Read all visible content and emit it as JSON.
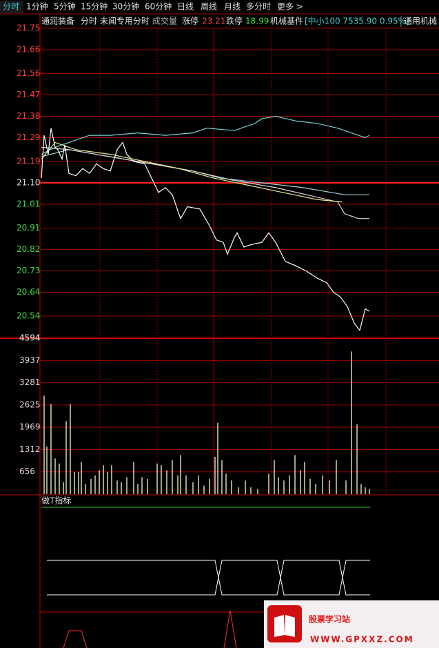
{
  "toolbar": {
    "tabs": [
      "分时",
      "1分钟",
      "5分钟",
      "15分钟",
      "30分钟",
      "60分钟",
      "日线",
      "周线",
      "月线",
      "多分时",
      "更多 >"
    ]
  },
  "header": {
    "stock": "通润装备",
    "view": "分时 未闻专用分时",
    "volume_label": "成交量",
    "limit_up_label": "涨停",
    "limit_up": "23.21",
    "limit_down_label": "跌停",
    "limit_down": "18.99",
    "sector": "机械基件",
    "index": "[中小100 7535.90 0.95%]",
    "industry": "通用机械"
  },
  "chart_data": [
    {
      "type": "line",
      "xlim": [
        0,
        240
      ],
      "ylim": [
        20.45,
        21.75
      ],
      "yticks": [
        21.75,
        21.66,
        21.56,
        21.47,
        21.38,
        21.29,
        21.19,
        {
          "value": 21.1,
          "label": "21.10"
        },
        21.01,
        20.91,
        20.82,
        20.73,
        20.64,
        20.54
      ],
      "ytick_colors": [
        "#ff3c3c",
        "#ff3c3c",
        "#ff3c3c",
        "#ff3c3c",
        "#ff3c3c",
        "#ff3c3c",
        "#ff3c3c",
        "#e0e0e0",
        "#3cdc3c",
        "#3cdc3c",
        "#3cdc3c",
        "#3cdc3c",
        "#3cdc3c",
        "#3cdc3c"
      ],
      "series": [
        {
          "color": "#6fd6d6",
          "x": [
            0,
            10,
            20,
            35,
            50,
            70,
            90,
            110,
            120,
            140,
            155,
            160,
            170,
            185,
            200,
            215,
            225,
            235,
            238
          ],
          "values": [
            21.22,
            21.25,
            21.27,
            21.3,
            21.3,
            21.31,
            21.3,
            21.31,
            21.33,
            21.32,
            21.35,
            21.37,
            21.38,
            21.36,
            21.35,
            21.33,
            21.31,
            21.29,
            21.3
          ]
        },
        {
          "color": "#9fd0d8",
          "x": [
            0,
            20,
            50,
            80,
            110,
            130,
            160,
            190,
            220,
            238
          ],
          "values": [
            21.21,
            21.24,
            21.21,
            21.18,
            21.15,
            21.12,
            21.1,
            21.08,
            21.05,
            21.05
          ]
        },
        {
          "color": "#d8d8d8",
          "x": [
            0,
            20,
            50,
            80,
            110,
            140,
            170,
            200,
            215,
            220,
            230,
            238
          ],
          "values": [
            21.25,
            21.24,
            21.21,
            21.18,
            21.15,
            21.11,
            21.08,
            21.04,
            21.02,
            20.97,
            20.95,
            20.95
          ]
        },
        {
          "color": "#f0e68c",
          "x": [
            0,
            10,
            25,
            50,
            75,
            100,
            125,
            150,
            175,
            200,
            218
          ],
          "values": [
            21.2,
            21.27,
            21.24,
            21.22,
            21.19,
            21.16,
            21.12,
            21.09,
            21.06,
            21.03,
            21.02
          ]
        },
        {
          "color": "#ffffff",
          "x": [
            0,
            2,
            5,
            7,
            10,
            12,
            15,
            17,
            20,
            25,
            30,
            35,
            40,
            45,
            50,
            55,
            59,
            62,
            67,
            75,
            80,
            85,
            90,
            95,
            101,
            106,
            115,
            122,
            127,
            132,
            135,
            140,
            142,
            147,
            152,
            160,
            165,
            170,
            177,
            185,
            192,
            200,
            207,
            212,
            217,
            222,
            227,
            231,
            235,
            238
          ],
          "values": [
            21.12,
            21.3,
            21.22,
            21.33,
            21.25,
            21.24,
            21.2,
            21.26,
            21.14,
            21.13,
            21.16,
            21.14,
            21.18,
            21.16,
            21.15,
            21.24,
            21.27,
            21.22,
            21.19,
            21.18,
            21.12,
            21.06,
            21.08,
            21.05,
            20.95,
            21.0,
            20.99,
            20.92,
            20.86,
            20.85,
            20.8,
            20.87,
            20.89,
            20.83,
            20.84,
            20.85,
            20.89,
            20.85,
            20.77,
            20.75,
            20.73,
            20.7,
            20.68,
            20.64,
            20.62,
            20.58,
            20.51,
            20.48,
            20.57,
            20.56
          ]
        }
      ]
    },
    {
      "type": "bar",
      "xlim": [
        0,
        240
      ],
      "ylim": [
        0,
        4594
      ],
      "yticks": [
        4594,
        3937,
        3281,
        2625,
        1969,
        1312,
        656
      ],
      "color": "#d8d8b4",
      "x": [
        2,
        4,
        7,
        10,
        13,
        16,
        18,
        21,
        24,
        27,
        29,
        32,
        36,
        39,
        42,
        45,
        48,
        51,
        55,
        58,
        62,
        67,
        70,
        73,
        77,
        84,
        87,
        91,
        95,
        99,
        101,
        105,
        110,
        114,
        118,
        122,
        126,
        128,
        131,
        134,
        138,
        143,
        148,
        152,
        157,
        165,
        169,
        172,
        176,
        180,
        184,
        188,
        191,
        195,
        199,
        204,
        209,
        214,
        221,
        225,
        229,
        232,
        235,
        238
      ],
      "values": [
        2900,
        1400,
        2650,
        1050,
        900,
        350,
        2150,
        2650,
        650,
        650,
        950,
        300,
        450,
        550,
        700,
        850,
        650,
        850,
        400,
        350,
        500,
        950,
        300,
        500,
        450,
        900,
        850,
        700,
        1000,
        550,
        1150,
        550,
        350,
        550,
        250,
        450,
        1100,
        2100,
        1000,
        600,
        400,
        200,
        400,
        200,
        150,
        600,
        1000,
        500,
        400,
        550,
        1150,
        700,
        950,
        450,
        300,
        550,
        400,
        1000,
        400,
        4200,
        2050,
        300,
        200,
        150
      ]
    }
  ],
  "indicator": {
    "title": "做T指标"
  },
  "watermark": {
    "title": "股票学习站",
    "url": "WWW.GPXXZ.COM"
  }
}
